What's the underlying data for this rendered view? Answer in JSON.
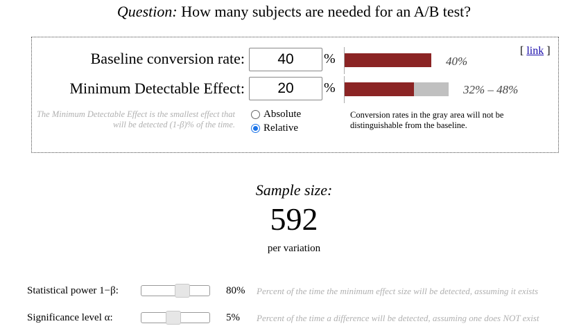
{
  "title": {
    "prefix": "Question:",
    "text": "How many subjects are needed for an A/B test?"
  },
  "panel": {
    "baseline": {
      "label": "Baseline conversion rate:",
      "value": "40",
      "unit": "%",
      "bar_label": "40%",
      "bar_fraction": 0.4
    },
    "mde": {
      "label": "Minimum Detectable Effect:",
      "value": "20",
      "unit": "%",
      "range_label": "32% – 48%",
      "range_low": 0.32,
      "range_high": 0.48
    },
    "link": {
      "open": "[",
      "text": "link",
      "close": "]"
    },
    "note": "The Minimum Detectable Effect is the smallest effect that will be detected (1-β)% of the time.",
    "options": [
      {
        "label": "Absolute",
        "checked": false
      },
      {
        "label": "Relative",
        "checked": true
      }
    ],
    "gray_note": "Conversion rates in the gray area will not be distinguishable from the baseline."
  },
  "result": {
    "label": "Sample size:",
    "value": "592",
    "unit": "per variation"
  },
  "params": {
    "power": {
      "label": "Statistical power 1−β:",
      "value": "80%",
      "level": 0.8,
      "desc": "Percent of the time the minimum effect size will be detected, assuming it exists"
    },
    "significance": {
      "label": "Significance level α:",
      "value": "5%",
      "level": 0.05,
      "desc": "Percent of the time a difference will be detected, assuming one does NOT exist"
    }
  }
}
